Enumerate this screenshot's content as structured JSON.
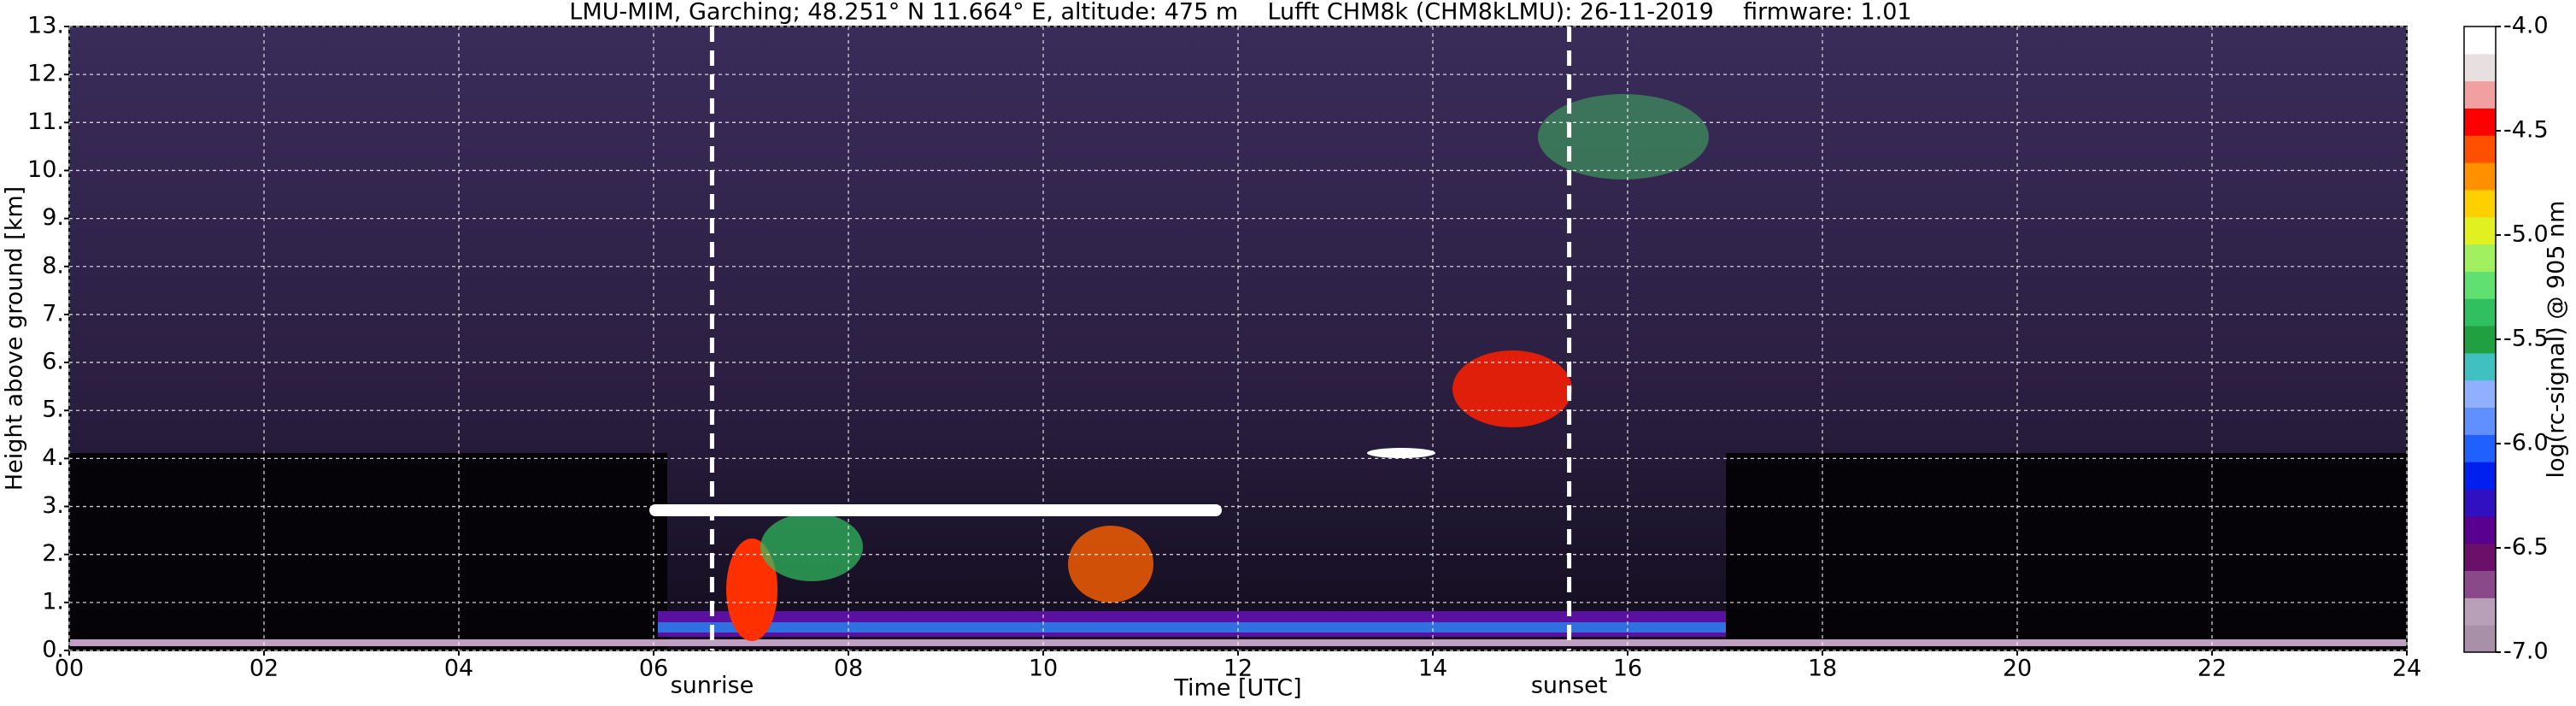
{
  "chart_data": {
    "type": "heatmap",
    "title": "LMU-MIM, Garching; 48.251° N 11.664° E, altitude: 475 m    Lufft CHM8k (CHM8kLMU): 26-11-2019    firmware: 1.01",
    "x_label": "Time [UTC]",
    "y_label": "Height above ground [km]",
    "xlim": [
      0,
      24
    ],
    "xticks": [
      {
        "value": 0,
        "label": "00"
      },
      {
        "value": 2,
        "label": "02"
      },
      {
        "value": 4,
        "label": "04"
      },
      {
        "value": 6,
        "label": "06"
      },
      {
        "value": 8,
        "label": "08"
      },
      10,
      12,
      14,
      16,
      18,
      20,
      22,
      24
    ],
    "ylim": [
      0,
      13
    ],
    "yticks": [
      {
        "value": 0,
        "label": "0."
      },
      {
        "value": 1,
        "label": "1."
      },
      {
        "value": 2,
        "label": "2."
      },
      {
        "value": 3,
        "label": "3."
      },
      {
        "value": 4,
        "label": "4."
      },
      {
        "value": 5,
        "label": "5."
      },
      {
        "value": 6,
        "label": "6."
      },
      {
        "value": 7,
        "label": "7."
      },
      {
        "value": 8,
        "label": "8."
      },
      {
        "value": 9,
        "label": "9."
      },
      {
        "value": 10,
        "label": "10."
      },
      {
        "value": 11,
        "label": "11."
      },
      {
        "value": 12,
        "label": "12."
      },
      {
        "value": 13,
        "label": "13."
      }
    ],
    "grid": true,
    "annotations": [
      {
        "label": "sunrise",
        "x": 6.6
      },
      {
        "label": "sunset",
        "x": 15.4
      }
    ],
    "colorbar": {
      "label": "log(rc-signal) @ 905 nm",
      "lim": [
        -7,
        -4
      ],
      "ticks": [
        {
          "value": -4,
          "label": "-4.0"
        },
        -4.5,
        {
          "value": -5,
          "label": "-5.0"
        },
        -5.5,
        {
          "value": -6,
          "label": "-6.0"
        },
        -6.5,
        {
          "value": -7,
          "label": "-7.0"
        }
      ],
      "colors": [
        "#a890a8",
        "#b8a0b8",
        "#8a4a8a",
        "#6a106a",
        "#5a0090",
        "#3010c0",
        "#0020f0",
        "#2060ff",
        "#6090ff",
        "#90b0ff",
        "#40c0c0",
        "#20a040",
        "#30c060",
        "#60e070",
        "#a0f060",
        "#e0f020",
        "#ffd000",
        "#ff9000",
        "#ff5000",
        "#ff0000",
        "#f0a0a0",
        "#e8e0e0",
        "#ffffff"
      ]
    }
  }
}
